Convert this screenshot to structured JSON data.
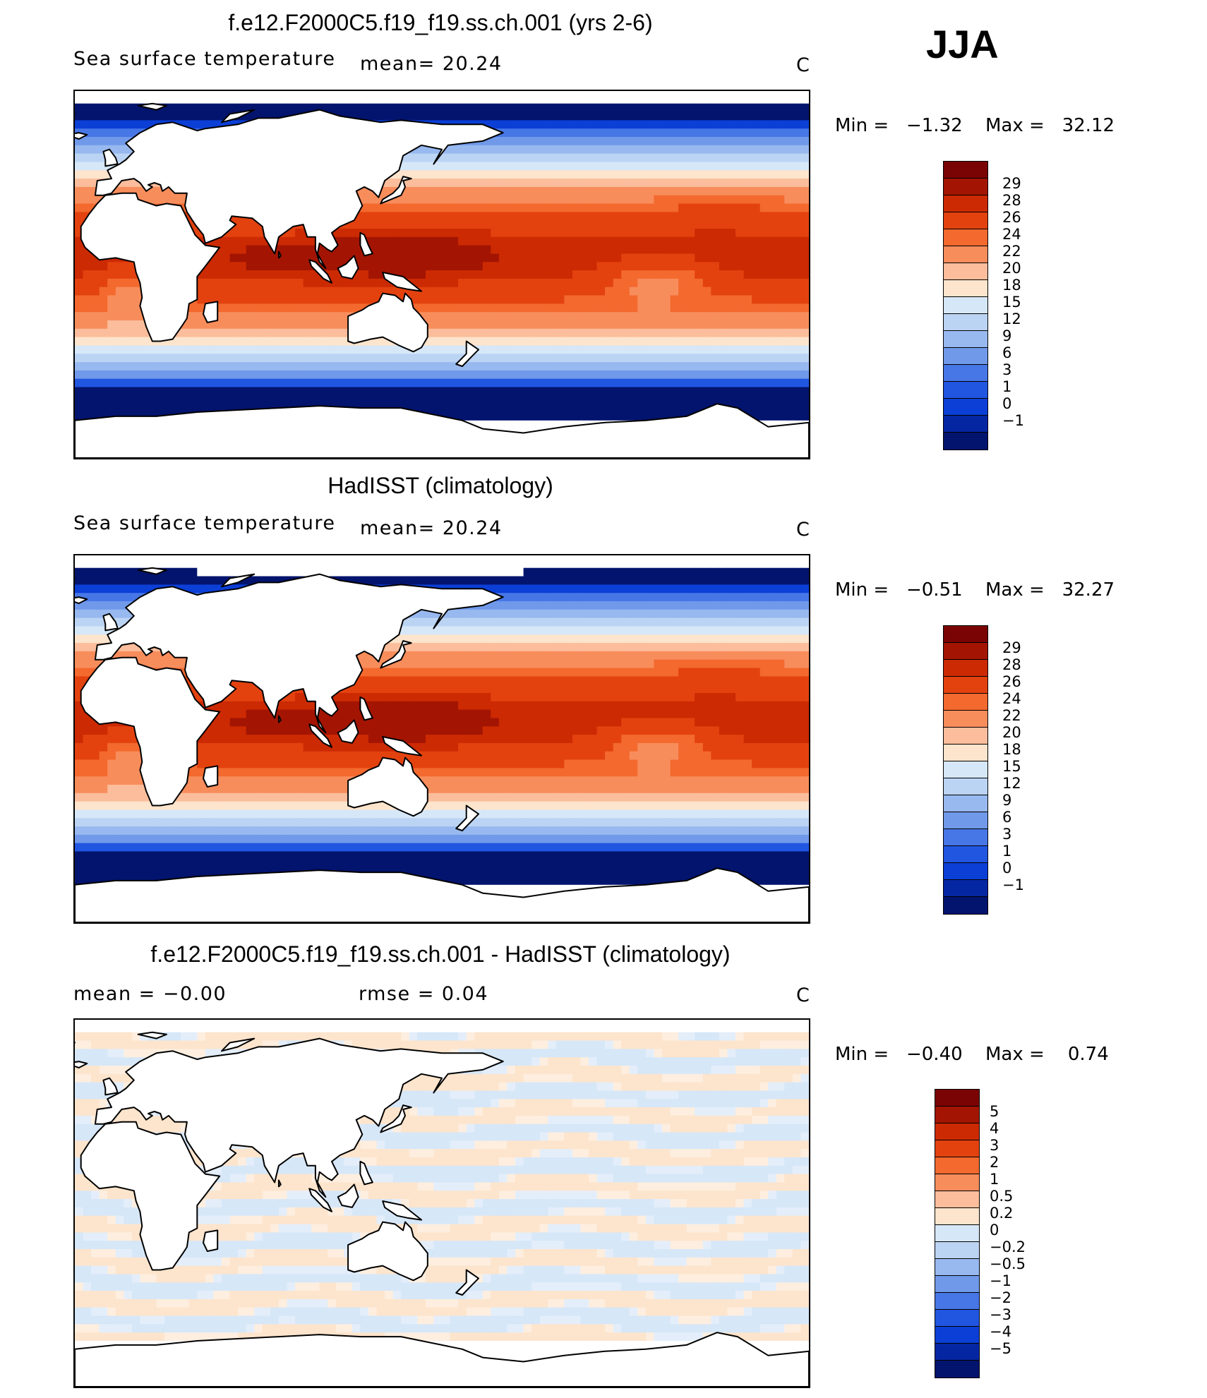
{
  "season": "JJA",
  "panels": [
    {
      "title": "f.e12.F2000C5.f19_f19.ss.ch.001 (yrs 2-6)",
      "left_text": "Sea surface temperature",
      "mean_text": "mean=   20.24",
      "units": "C",
      "min_text": "Min =   −1.32",
      "max_text": "Max =   32.12"
    },
    {
      "title": "HadISST (climatology)",
      "left_text": "Sea surface temperature",
      "mean_text": "mean=   20.24",
      "units": "C",
      "min_text": "Min =   −0.51",
      "max_text": "Max =   32.27"
    },
    {
      "title": "f.e12.F2000C5.f19_f19.ss.ch.001 - HadISST (climatology)",
      "left_text": "mean =   −0.00",
      "mean_text": "rmse =    0.04",
      "units": "C",
      "min_text": "Min =   −0.40",
      "max_text": "Max =    0.74"
    }
  ],
  "colorbars": {
    "sst": {
      "labels": [
        "29",
        "28",
        "26",
        "24",
        "22",
        "20",
        "18",
        "15",
        "12",
        "9",
        "6",
        "3",
        "1",
        "0",
        "−1"
      ],
      "colors": [
        "#7a0403",
        "#a31502",
        "#cc2a03",
        "#e3420f",
        "#f3692e",
        "#f88d5c",
        "#fbbd9b",
        "#fde4cc",
        "#d6e7f8",
        "#bcd4f4",
        "#98b9ef",
        "#7099ea",
        "#4776e6",
        "#2056e0",
        "#0b3fd6",
        "#0526a3",
        "#02146e"
      ]
    },
    "diff": {
      "labels": [
        "5",
        "4",
        "3",
        "2",
        "1",
        "0.5",
        "0.2",
        "0",
        "−0.2",
        "−0.5",
        "−1",
        "−2",
        "−3",
        "−4",
        "−5"
      ],
      "colors": [
        "#7a0403",
        "#a31502",
        "#cc2a03",
        "#e3420f",
        "#f3692e",
        "#f88d5c",
        "#fbbd9b",
        "#fde4cc",
        "#d6e7f8",
        "#bcd4f4",
        "#98b9ef",
        "#7099ea",
        "#4776e6",
        "#2056e0",
        "#0b3fd6",
        "#0526a3",
        "#02146e"
      ]
    }
  },
  "chart_data": [
    {
      "type": "heatmap",
      "title": "f.e12.F2000C5.f19_f19.ss.ch.001 (yrs 2-6)",
      "variable": "Sea surface temperature",
      "units": "C",
      "season": "JJA",
      "mean": 20.24,
      "min": -1.32,
      "max": 32.12,
      "contour_levels": [
        -1,
        0,
        1,
        3,
        6,
        9,
        12,
        15,
        18,
        20,
        22,
        24,
        26,
        28,
        29
      ],
      "colorscale": "blue-white-red"
    },
    {
      "type": "heatmap",
      "title": "HadISST (climatology)",
      "variable": "Sea surface temperature",
      "units": "C",
      "season": "JJA",
      "mean": 20.24,
      "min": -0.51,
      "max": 32.27,
      "contour_levels": [
        -1,
        0,
        1,
        3,
        6,
        9,
        12,
        15,
        18,
        20,
        22,
        24,
        26,
        28,
        29
      ],
      "colorscale": "blue-white-red"
    },
    {
      "type": "heatmap",
      "title": "f.e12.F2000C5.f19_f19.ss.ch.001 - HadISST (climatology)",
      "units": "C",
      "season": "JJA",
      "mean": -0.0,
      "rmse": 0.04,
      "min": -0.4,
      "max": 0.74,
      "contour_levels": [
        -5,
        -4,
        -3,
        -2,
        -1,
        -0.5,
        -0.2,
        0,
        0.2,
        0.5,
        1,
        2,
        3,
        4,
        5
      ],
      "colorscale": "blue-white-red"
    }
  ]
}
